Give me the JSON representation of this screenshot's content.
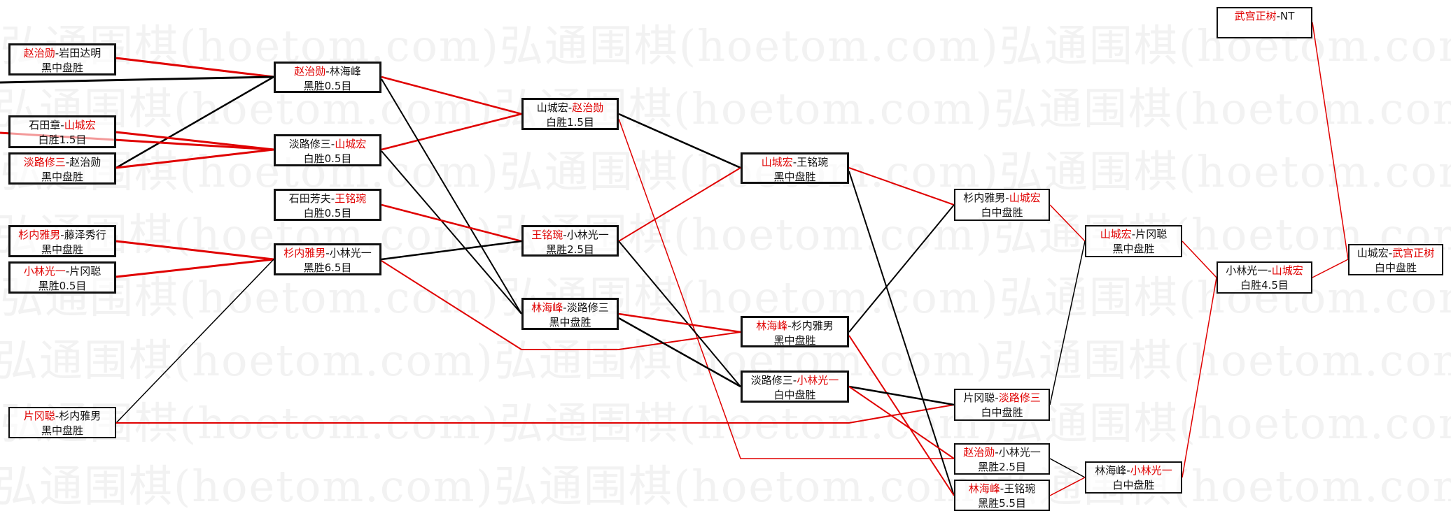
{
  "watermark": "弘通围棋(hoetom.com)",
  "colors": {
    "winner": "#e00000",
    "line_winner": "#e00000",
    "line_loser": "#000000",
    "border": "#111111"
  },
  "matches": {
    "A1": {
      "p1": "赵治勋",
      "p2": "岩田达明",
      "winner": 1,
      "result": "黑中盘胜"
    },
    "A2": {
      "p1": "石田章",
      "p2": "山城宏",
      "winner": 2,
      "result": "白胜1.5目"
    },
    "A3": {
      "p1": "淡路修三",
      "p2": "赵治勋",
      "winner": 1,
      "result": "黑中盘胜"
    },
    "A4": {
      "p1": "杉内雅男",
      "p2": "藤泽秀行",
      "winner": 1,
      "result": "黑中盘胜"
    },
    "A5": {
      "p1": "小林光一",
      "p2": "片冈聪",
      "winner": 1,
      "result": "黑胜0.5目"
    },
    "A6": {
      "p1": "片冈聪",
      "p2": "杉内雅男",
      "winner": 1,
      "result": "黑中盘胜"
    },
    "B1": {
      "p1": "赵治勋",
      "p2": "林海峰",
      "winner": 1,
      "result": "黑胜0.5目"
    },
    "B2": {
      "p1": "淡路修三",
      "p2": "山城宏",
      "winner": 2,
      "result": "白胜0.5目"
    },
    "B3": {
      "p1": "石田芳夫",
      "p2": "王铭琬",
      "winner": 2,
      "result": "白胜0.5目"
    },
    "B4": {
      "p1": "杉内雅男",
      "p2": "小林光一",
      "winner": 1,
      "result": "黑胜6.5目"
    },
    "C1": {
      "p1": "山城宏",
      "p2": "赵治勋",
      "winner": 2,
      "result": "白胜1.5目"
    },
    "C2": {
      "p1": "王铭琬",
      "p2": "小林光一",
      "winner": 1,
      "result": "黑胜2.5目"
    },
    "C3": {
      "p1": "林海峰",
      "p2": "淡路修三",
      "winner": 1,
      "result": "黑中盘胜"
    },
    "D1": {
      "p1": "山城宏",
      "p2": "王铭琬",
      "winner": 1,
      "result": "黑中盘胜"
    },
    "D2": {
      "p1": "林海峰",
      "p2": "杉内雅男",
      "winner": 1,
      "result": "黑中盘胜"
    },
    "D3": {
      "p1": "淡路修三",
      "p2": "小林光一",
      "winner": 2,
      "result": "白中盘胜"
    },
    "E1": {
      "p1": "杉内雅男",
      "p2": "山城宏",
      "winner": 2,
      "result": "白中盘胜"
    },
    "E2": {
      "p1": "片冈聪",
      "p2": "淡路修三",
      "winner": 2,
      "result": "白中盘胜"
    },
    "E3": {
      "p1": "赵治勋",
      "p2": "小林光一",
      "winner": 1,
      "result": "黑胜2.5目"
    },
    "E4": {
      "p1": "林海峰",
      "p2": "王铭琬",
      "winner": 1,
      "result": "黑胜5.5目"
    },
    "F1": {
      "p1": "山城宏",
      "p2": "片冈聪",
      "winner": 1,
      "result": "黑中盘胜"
    },
    "F2": {
      "p1": "林海峰",
      "p2": "小林光一",
      "winner": 2,
      "result": "白中盘胜"
    },
    "G0": {
      "p1": "武宫正树",
      "p2": "NT",
      "winner": 1,
      "result": ""
    },
    "G1": {
      "p1": "小林光一",
      "p2": "山城宏",
      "winner": 2,
      "result": "白胜4.5目"
    },
    "H": {
      "p1": "山城宏",
      "p2": "武宫正树",
      "winner": 2,
      "result": "白中盘胜"
    }
  }
}
